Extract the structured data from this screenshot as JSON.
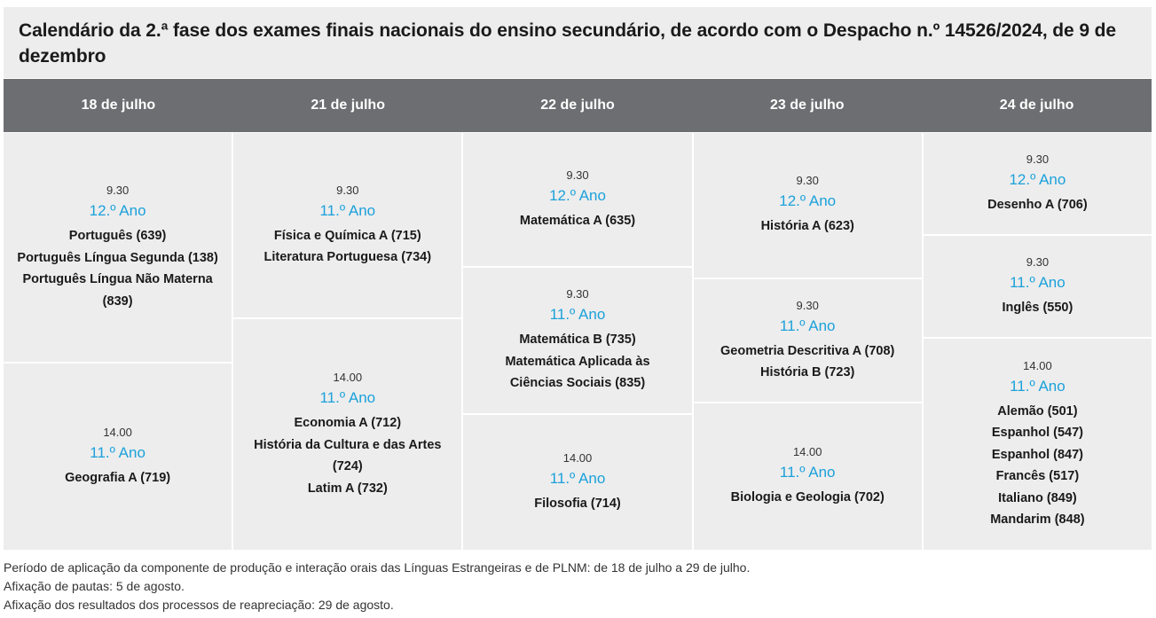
{
  "title": "Calendário da 2.ª fase dos exames finais nacionais do ensino secundário, de acordo com o Despacho n.º 14526/2024, de 9 de dezembro",
  "days": [
    "18 de julho",
    "21 de julho",
    "22 de julho",
    "23 de julho",
    "24 de julho"
  ],
  "columns": [
    {
      "slots": [
        {
          "time": "9.30",
          "year": "12.º Ano",
          "exams": [
            "Português (639)",
            "Português Língua Segunda (138)",
            "Português Língua Não Materna (839)"
          ]
        },
        {
          "time": "14.00",
          "year": "11.º Ano",
          "exams": [
            "Geografia A (719)"
          ]
        }
      ]
    },
    {
      "slots": [
        {
          "time": "9.30",
          "year": "11.º Ano",
          "exams": [
            "Física e Química A (715)",
            "Literatura Portuguesa (734)"
          ]
        },
        {
          "time": "14.00",
          "year": "11.º Ano",
          "exams": [
            "Economia A (712)",
            "História da Cultura e das Artes (724)",
            "Latim A (732)"
          ]
        }
      ]
    },
    {
      "slots": [
        {
          "time": "9.30",
          "year": "12.º Ano",
          "exams": [
            "Matemática A (635)"
          ]
        },
        {
          "time": "9.30",
          "year": "11.º Ano",
          "exams": [
            "Matemática B (735)",
            "Matemática Aplicada às Ciências Sociais (835)"
          ]
        },
        {
          "time": "14.00",
          "year": "11.º Ano",
          "exams": [
            "Filosofia (714)"
          ]
        }
      ]
    },
    {
      "slots": [
        {
          "time": "9.30",
          "year": "12.º Ano",
          "exams": [
            "História A (623)"
          ]
        },
        {
          "time": "9.30",
          "year": "11.º Ano",
          "exams": [
            "Geometria Descritiva A (708)",
            "História B (723)"
          ]
        },
        {
          "time": "14.00",
          "year": "11.º Ano",
          "exams": [
            "Biologia e Geologia (702)"
          ]
        }
      ]
    },
    {
      "slots": [
        {
          "time": "9.30",
          "year": "12.º Ano",
          "exams": [
            "Desenho A (706)"
          ]
        },
        {
          "time": "9.30",
          "year": "11.º Ano",
          "exams": [
            "Inglês (550)"
          ]
        },
        {
          "time": "14.00",
          "year": "11.º Ano",
          "exams": [
            "Alemão (501)",
            "Espanhol (547)",
            "Espanhol (847)",
            "Francês (517)",
            "Italiano (849)",
            "Mandarim (848)"
          ]
        }
      ]
    }
  ],
  "notes": [
    "Período de aplicação da componente de produção e interação orais das Línguas Estrangeiras e de PLNM: de 18 de julho a 29 de julho.",
    "Afixação de pautas: 5 de agosto.",
    "Afixação dos resultados dos processos de reapreciação: 29 de agosto."
  ],
  "colors": {
    "header_bg": "#6d6e71",
    "cell_bg": "#ededed",
    "year_accent": "#1ba1db"
  }
}
